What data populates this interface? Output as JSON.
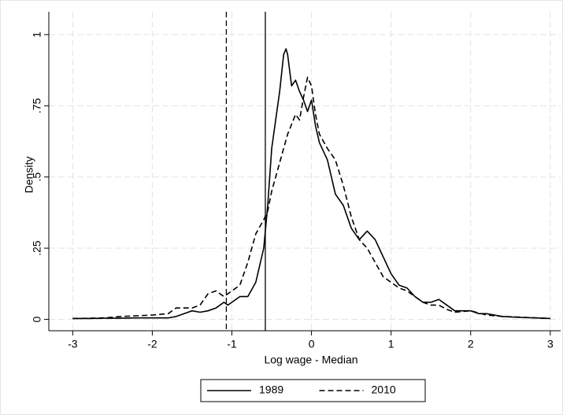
{
  "chart_data": {
    "type": "line",
    "x_label": "Log wage - Median",
    "y_label": "Density",
    "xlim": [
      -3.3,
      3.13
    ],
    "ylim": [
      -0.04,
      1.08
    ],
    "xticks": [
      -3,
      -2,
      -1,
      0,
      1,
      2,
      3
    ],
    "yticks": [
      0,
      {
        "value": 0.25,
        "label": ".25"
      },
      {
        "value": 0.5,
        "label": ".5"
      },
      {
        "value": 0.75,
        "label": ".75"
      },
      1
    ],
    "grid": true,
    "legend": "bottom",
    "xlines": [
      {
        "value": -1.07,
        "dash": true,
        "color": "#000000"
      },
      {
        "value": -0.58,
        "dash": false,
        "color": "#000000"
      }
    ],
    "series": [
      {
        "name": "1989",
        "color": "#000000",
        "dash": false,
        "x": [
          -3,
          -2.8,
          -2.6,
          -2.4,
          -2.2,
          -2.0,
          -1.8,
          -1.7,
          -1.6,
          -1.5,
          -1.4,
          -1.3,
          -1.2,
          -1.1,
          -1.05,
          -1.0,
          -0.9,
          -0.8,
          -0.7,
          -0.6,
          -0.55,
          -0.5,
          -0.45,
          -0.4,
          -0.35,
          -0.32,
          -0.3,
          -0.25,
          -0.2,
          -0.15,
          -0.1,
          -0.05,
          0,
          0.05,
          0.1,
          0.2,
          0.3,
          0.4,
          0.5,
          0.6,
          0.7,
          0.8,
          0.9,
          1.0,
          1.1,
          1.2,
          1.3,
          1.4,
          1.5,
          1.6,
          1.7,
          1.8,
          1.9,
          2.0,
          2.1,
          2.2,
          2.4,
          2.6,
          2.8,
          3
        ],
        "values": [
          0.003,
          0.003,
          0.004,
          0.004,
          0.005,
          0.005,
          0.005,
          0.01,
          0.02,
          0.03,
          0.025,
          0.03,
          0.04,
          0.06,
          0.05,
          0.06,
          0.08,
          0.08,
          0.13,
          0.25,
          0.4,
          0.6,
          0.7,
          0.8,
          0.93,
          0.95,
          0.93,
          0.82,
          0.84,
          0.8,
          0.77,
          0.73,
          0.77,
          0.68,
          0.62,
          0.56,
          0.44,
          0.4,
          0.32,
          0.28,
          0.31,
          0.28,
          0.22,
          0.16,
          0.12,
          0.11,
          0.08,
          0.06,
          0.06,
          0.07,
          0.05,
          0.03,
          0.03,
          0.03,
          0.02,
          0.02,
          0.01,
          0.007,
          0.005,
          0.003
        ]
      },
      {
        "name": "2010",
        "color": "#000000",
        "dash": true,
        "x": [
          -3,
          -2.6,
          -2.4,
          -2.0,
          -1.8,
          -1.7,
          -1.5,
          -1.4,
          -1.3,
          -1.2,
          -1.1,
          -1.0,
          -0.9,
          -0.8,
          -0.7,
          -0.6,
          -0.55,
          -0.5,
          -0.4,
          -0.3,
          -0.2,
          -0.15,
          -0.1,
          -0.05,
          0,
          0.05,
          0.1,
          0.2,
          0.3,
          0.4,
          0.5,
          0.6,
          0.7,
          0.8,
          0.9,
          1.0,
          1.1,
          1.2,
          1.3,
          1.4,
          1.5,
          1.6,
          1.7,
          1.8,
          2.0,
          2.2,
          2.4,
          2.6,
          3
        ],
        "values": [
          0.003,
          0.005,
          0.01,
          0.015,
          0.02,
          0.04,
          0.04,
          0.05,
          0.09,
          0.1,
          0.08,
          0.1,
          0.12,
          0.2,
          0.3,
          0.35,
          0.38,
          0.45,
          0.55,
          0.65,
          0.72,
          0.7,
          0.78,
          0.85,
          0.82,
          0.72,
          0.65,
          0.6,
          0.56,
          0.47,
          0.36,
          0.28,
          0.25,
          0.2,
          0.15,
          0.13,
          0.11,
          0.1,
          0.08,
          0.06,
          0.05,
          0.05,
          0.035,
          0.025,
          0.03,
          0.015,
          0.01,
          0.008,
          0.003
        ]
      }
    ]
  }
}
